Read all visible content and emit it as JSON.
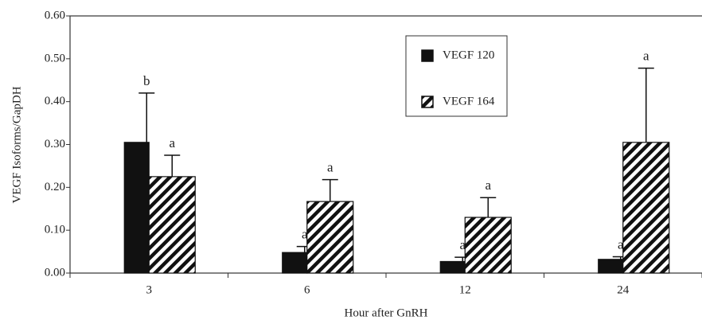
{
  "chart_data": {
    "type": "bar",
    "x_label": "Hour after GnRH",
    "y_label": "VEGF Isoforms/GapDH",
    "categories": [
      "3",
      "6",
      "12",
      "24"
    ],
    "series": [
      {
        "name": "VEGF 120",
        "color": "#111111",
        "fill": "solid",
        "values": [
          0.305,
          0.048,
          0.027,
          0.032
        ],
        "errors": [
          0.115,
          0.014,
          0.01,
          0.006
        ],
        "letters": [
          "b",
          "a",
          "a",
          "a"
        ]
      },
      {
        "name": "VEGF 164",
        "color": "#111111",
        "fill": "hatch",
        "values": [
          0.225,
          0.167,
          0.13,
          0.305
        ],
        "errors": [
          0.05,
          0.051,
          0.046,
          0.173
        ],
        "letters": [
          "a",
          "a",
          "a",
          "a"
        ]
      }
    ],
    "ylim": [
      0,
      0.6
    ],
    "yticks": [
      {
        "value": 0,
        "label": "0.00"
      },
      {
        "value": 0.1,
        "label": "0.10"
      },
      {
        "value": 0.2,
        "label": "0.20"
      },
      {
        "value": 0.3,
        "label": "0.30"
      },
      {
        "value": 0.4,
        "label": "0.40"
      },
      {
        "value": 0.5,
        "label": "0.50"
      },
      {
        "value": 0.6,
        "label": "0.60"
      }
    ],
    "legend": "upper-right"
  }
}
